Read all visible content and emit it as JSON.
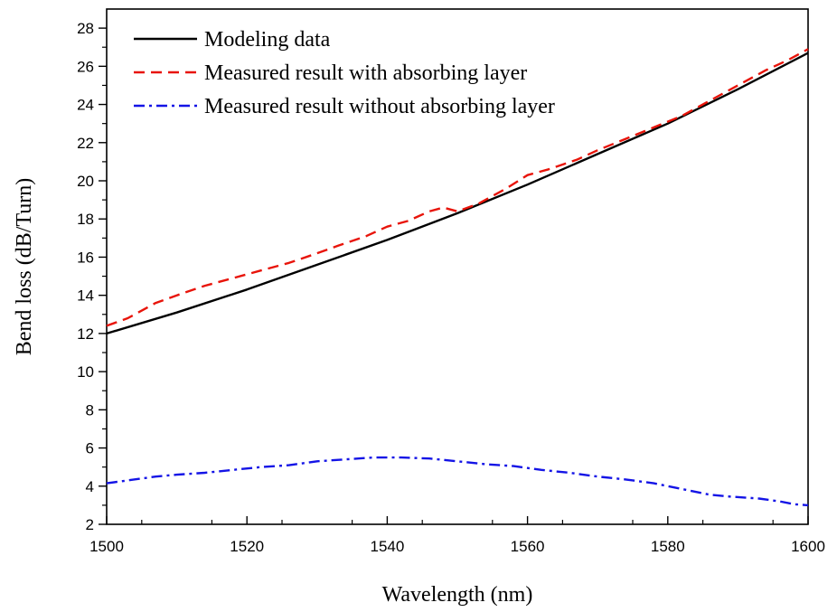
{
  "chart_data": {
    "type": "line",
    "xlabel": "Wavelength (nm)",
    "ylabel": "Bend loss (dB/Turn)",
    "xlim": [
      1500,
      1600
    ],
    "ylim": [
      2,
      29
    ],
    "x_ticks": [
      1500,
      1520,
      1540,
      1560,
      1580,
      1600
    ],
    "x_tick_labels": [
      "1500",
      "1520",
      "1540",
      "1560",
      "1580",
      "1600"
    ],
    "y_ticks": [
      2,
      4,
      6,
      8,
      10,
      12,
      14,
      16,
      18,
      20,
      22,
      24,
      26,
      28
    ],
    "y_tick_labels": [
      "2",
      "4",
      "6",
      "8",
      "10",
      "12",
      "14",
      "16",
      "18",
      "20",
      "22",
      "24",
      "26",
      "28"
    ],
    "grid": false,
    "legend_position": "top-left",
    "series": [
      {
        "name": "Modeling data",
        "color": "#000000",
        "style": "solid",
        "x": [
          1500,
          1510,
          1520,
          1530,
          1540,
          1550,
          1560,
          1570,
          1580,
          1590,
          1600
        ],
        "y": [
          12.0,
          13.1,
          14.3,
          15.6,
          16.9,
          18.3,
          19.8,
          21.4,
          23.0,
          24.8,
          26.7
        ]
      },
      {
        "name": "Measured result with absorbing layer",
        "color": "#e8140a",
        "style": "dashed",
        "x": [
          1500,
          1503,
          1507,
          1510,
          1514,
          1518,
          1522,
          1526,
          1530,
          1533,
          1537,
          1540,
          1543,
          1546,
          1548,
          1550,
          1553,
          1557,
          1560,
          1563,
          1567,
          1570,
          1574,
          1578,
          1582,
          1586,
          1590,
          1594,
          1597,
          1600
        ],
        "y": [
          12.4,
          12.8,
          13.6,
          14.0,
          14.5,
          14.9,
          15.3,
          15.7,
          16.2,
          16.6,
          17.1,
          17.6,
          17.9,
          18.4,
          18.6,
          18.4,
          18.8,
          19.6,
          20.3,
          20.6,
          21.1,
          21.6,
          22.2,
          22.8,
          23.4,
          24.2,
          25.0,
          25.8,
          26.3,
          26.9
        ]
      },
      {
        "name": "Measured result without absorbing layer",
        "color": "#1414e6",
        "style": "dashdot",
        "x": [
          1500,
          1503,
          1507,
          1510,
          1514,
          1518,
          1522,
          1526,
          1530,
          1534,
          1538,
          1542,
          1546,
          1550,
          1554,
          1558,
          1562,
          1566,
          1570,
          1574,
          1578,
          1582,
          1586,
          1589,
          1593,
          1596,
          1598,
          1600
        ],
        "y": [
          4.15,
          4.3,
          4.5,
          4.6,
          4.7,
          4.85,
          5.0,
          5.1,
          5.3,
          5.4,
          5.5,
          5.5,
          5.45,
          5.3,
          5.15,
          5.05,
          4.85,
          4.7,
          4.5,
          4.35,
          4.15,
          3.85,
          3.55,
          3.45,
          3.35,
          3.2,
          3.05,
          3.0
        ]
      }
    ]
  }
}
